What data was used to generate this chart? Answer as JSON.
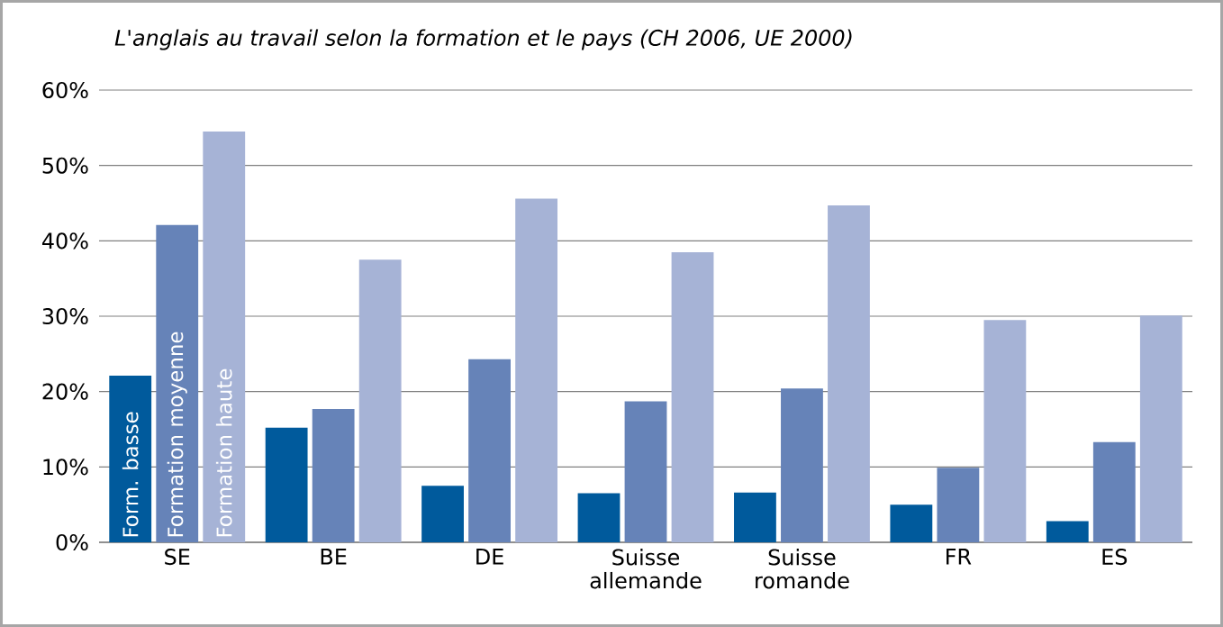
{
  "chart_data": {
    "type": "bar",
    "title": "*L'anglais au travail selon la formation et le pays (CH 2006, UE 2000)*",
    "categories": [
      "SE",
      "BE",
      "DE",
      "Suisse allemande",
      "Suisse romande",
      "FR",
      "ES"
    ],
    "series": [
      {
        "name": "Form. basse",
        "color": "#005a9c",
        "values": [
          22.1,
          15.2,
          7.5,
          6.5,
          6.6,
          5.0,
          2.8
        ]
      },
      {
        "name": "Formation moyenne",
        "color": "#6683b8",
        "values": [
          42.1,
          17.7,
          24.3,
          18.7,
          20.4,
          9.9,
          13.3
        ]
      },
      {
        "name": "Formation haute",
        "color": "#a6b3d6",
        "values": [
          54.5,
          37.5,
          45.6,
          38.5,
          44.7,
          29.5,
          30.1
        ]
      }
    ],
    "ylim": [
      0,
      60
    ],
    "yticks": [
      {
        "value": 0,
        "label": "0%"
      },
      {
        "value": 10,
        "label": "10%"
      },
      {
        "value": 20,
        "label": "20%"
      },
      {
        "value": 30,
        "label": "30%"
      },
      {
        "value": 40,
        "label": "40%"
      },
      {
        "value": 50,
        "label": "50%"
      },
      {
        "value": 60,
        "label": "60%"
      }
    ],
    "grid": "y",
    "legend": false
  }
}
